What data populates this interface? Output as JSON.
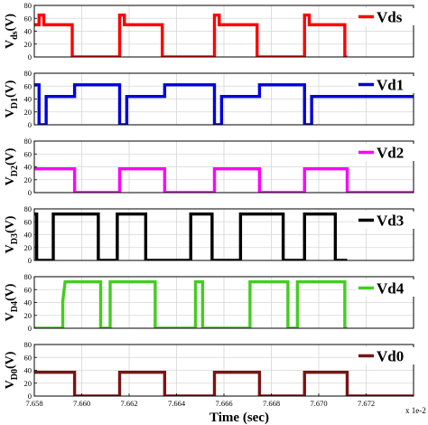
{
  "figure": {
    "xlabel": "Time (sec)",
    "x_exponent": "x 1e-2",
    "xticks": [
      "7.658",
      "7.660",
      "7.662",
      "7.664",
      "7.666",
      "7.668",
      "7.670",
      "7.672"
    ]
  },
  "chart_data": [
    {
      "type": "line",
      "ylabel": "V",
      "ylabel_sub": "ds",
      "ylabel_unit": "(V)",
      "ylim": [
        0,
        80
      ],
      "yticks": [
        0,
        20,
        40,
        60,
        80
      ],
      "xlim": [
        7.658,
        7.674
      ],
      "grid": true,
      "legend": "top-right",
      "series": [
        {
          "name": "Vds",
          "color": "#ff0000",
          "x": [
            7.658,
            7.6582,
            7.6582,
            7.6584,
            7.6584,
            7.6596,
            7.6596,
            7.6616,
            7.6616,
            7.6618,
            7.6618,
            7.6634,
            7.6634,
            7.6656,
            7.6656,
            7.6658,
            7.6658,
            7.6674,
            7.6674,
            7.6694,
            7.6694,
            7.6696,
            7.6696,
            7.6711,
            7.6711,
            7.6712
          ],
          "y": [
            50,
            50,
            65,
            65,
            50,
            50,
            0,
            0,
            65,
            65,
            50,
            50,
            0,
            0,
            65,
            65,
            50,
            50,
            0,
            0,
            65,
            65,
            50,
            50,
            0,
            0
          ]
        }
      ]
    },
    {
      "type": "line",
      "ylabel": "V",
      "ylabel_sub": "D1",
      "ylabel_unit": "(V)",
      "ylim": [
        0,
        80
      ],
      "yticks": [
        0,
        20,
        40,
        60,
        80
      ],
      "xlim": [
        7.658,
        7.674
      ],
      "grid": true,
      "legend": "top-right",
      "series": [
        {
          "name": "Vd1",
          "color": "#0000dd",
          "x": [
            7.658,
            7.6582,
            7.6582,
            7.6585,
            7.6585,
            7.6597,
            7.6597,
            7.6616,
            7.6616,
            7.6619,
            7.6619,
            7.6635,
            7.6635,
            7.6656,
            7.6656,
            7.6659,
            7.6659,
            7.6675,
            7.6675,
            7.6694,
            7.6694,
            7.6697,
            7.6697,
            7.674
          ],
          "y": [
            62,
            62,
            0,
            0,
            44,
            44,
            62,
            62,
            0,
            0,
            44,
            44,
            62,
            62,
            0,
            0,
            44,
            44,
            62,
            62,
            0,
            0,
            44,
            44
          ]
        }
      ]
    },
    {
      "type": "line",
      "ylabel": "V",
      "ylabel_sub": "D2",
      "ylabel_unit": "(V)",
      "ylim": [
        0,
        80
      ],
      "yticks": [
        0,
        20,
        40,
        60,
        80
      ],
      "xlim": [
        7.658,
        7.674
      ],
      "grid": true,
      "legend": "top-right",
      "series": [
        {
          "name": "Vd2",
          "color": "#ff00ff",
          "x": [
            7.658,
            7.6597,
            7.6597,
            7.6616,
            7.6616,
            7.6635,
            7.6635,
            7.6656,
            7.6656,
            7.6675,
            7.6675,
            7.6694,
            7.6694,
            7.6712,
            7.6712,
            7.674
          ],
          "y": [
            37,
            37,
            0,
            0,
            37,
            37,
            0,
            0,
            37,
            37,
            0,
            0,
            37,
            37,
            0,
            0
          ]
        }
      ]
    },
    {
      "type": "line",
      "ylabel": "V",
      "ylabel_sub": "D3",
      "ylabel_unit": "(V)",
      "ylim": [
        0,
        80
      ],
      "yticks": [
        0,
        20,
        40,
        60,
        80
      ],
      "xlim": [
        7.658,
        7.674
      ],
      "grid": true,
      "legend": "top-right",
      "series": [
        {
          "name": "Vd3",
          "color": "#000000",
          "x": [
            7.658,
            7.6581,
            7.6581,
            7.6588,
            7.6588,
            7.6607,
            7.6607,
            7.6615,
            7.6615,
            7.6627,
            7.6627,
            7.6646,
            7.6646,
            7.6655,
            7.6655,
            7.6667,
            7.6667,
            7.6685,
            7.6685,
            7.6694,
            7.6694,
            7.6707,
            7.6707,
            7.6712
          ],
          "y": [
            72,
            72,
            0,
            0,
            72,
            72,
            0,
            0,
            72,
            72,
            0,
            0,
            72,
            72,
            0,
            0,
            72,
            72,
            0,
            0,
            72,
            72,
            0,
            0
          ]
        }
      ]
    },
    {
      "type": "line",
      "ylabel": "V",
      "ylabel_sub": "D4",
      "ylabel_unit": "(V)",
      "ylim": [
        0,
        80
      ],
      "yticks": [
        0,
        20,
        40,
        60,
        80
      ],
      "xlim": [
        7.658,
        7.674
      ],
      "grid": true,
      "legend": "top-right",
      "series": [
        {
          "name": "Vd4",
          "color": "#44cc22",
          "x": [
            7.658,
            7.6592,
            7.6592,
            7.6593,
            7.6593,
            7.6608,
            7.6608,
            7.6612,
            7.6612,
            7.6631,
            7.6631,
            7.6648,
            7.6648,
            7.6651,
            7.6651,
            7.6671,
            7.6671,
            7.6687,
            7.6687,
            7.6691,
            7.6691,
            7.6711,
            7.6711,
            7.6712
          ],
          "y": [
            0,
            0,
            42,
            72,
            72,
            72,
            0,
            0,
            72,
            72,
            0,
            0,
            72,
            72,
            0,
            0,
            72,
            72,
            0,
            0,
            72,
            72,
            0,
            0
          ]
        }
      ]
    },
    {
      "type": "line",
      "ylabel": "V",
      "ylabel_sub": "D0",
      "ylabel_unit": "(V)",
      "ylim": [
        0,
        80
      ],
      "yticks": [
        0,
        20,
        40,
        60,
        80
      ],
      "xlim": [
        7.658,
        7.674
      ],
      "grid": true,
      "legend": "top-right",
      "series": [
        {
          "name": "Vd0",
          "color": "#7a1414",
          "x": [
            7.658,
            7.6597,
            7.6597,
            7.6616,
            7.6616,
            7.6635,
            7.6635,
            7.6656,
            7.6656,
            7.6675,
            7.6675,
            7.6694,
            7.6694,
            7.6712,
            7.6712,
            7.674
          ],
          "y": [
            37,
            37,
            0,
            0,
            37,
            37,
            0,
            0,
            37,
            37,
            0,
            0,
            37,
            37,
            0,
            0
          ]
        }
      ]
    }
  ]
}
